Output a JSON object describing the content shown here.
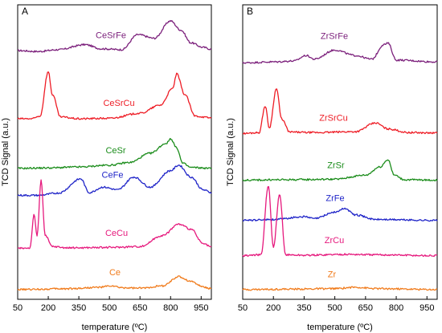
{
  "chart_data": [
    {
      "panel_label": "A",
      "type": "line",
      "xlabel": "temperature (ºC)",
      "ylabel": "TCD Signal (a.u.)",
      "xlim": [
        50,
        1000
      ],
      "xticks": [
        50,
        200,
        350,
        500,
        650,
        800,
        950
      ],
      "series": [
        {
          "name": "CeSrFe",
          "color": "#7b1f7b",
          "offset": 0.84,
          "points": [
            [
              50,
              0.03
            ],
            [
              150,
              0.01
            ],
            [
              250,
              0.05
            ],
            [
              380,
              0.16
            ],
            [
              460,
              0.07
            ],
            [
              560,
              0.05
            ],
            [
              640,
              0.38
            ],
            [
              720,
              0.3
            ],
            [
              800,
              0.68
            ],
            [
              850,
              0.48
            ],
            [
              900,
              0.2
            ],
            [
              960,
              0.1
            ],
            [
              1000,
              0.06
            ]
          ]
        },
        {
          "name": "CeSrCu",
          "color": "#ee1c25",
          "offset": 0.61,
          "points": [
            [
              50,
              0.02
            ],
            [
              120,
              0.02
            ],
            [
              160,
              0.08
            ],
            [
              200,
              1.05
            ],
            [
              220,
              0.55
            ],
            [
              260,
              0.06
            ],
            [
              350,
              0.02
            ],
            [
              500,
              0.03
            ],
            [
              650,
              0.14
            ],
            [
              750,
              0.32
            ],
            [
              810,
              0.68
            ],
            [
              830,
              1.0
            ],
            [
              870,
              0.55
            ],
            [
              920,
              0.08
            ],
            [
              1000,
              0.04
            ]
          ]
        },
        {
          "name": "CeSr",
          "color": "#1a8c1a",
          "offset": 0.44,
          "points": [
            [
              50,
              0.03
            ],
            [
              200,
              0.04
            ],
            [
              350,
              0.06
            ],
            [
              500,
              0.1
            ],
            [
              600,
              0.16
            ],
            [
              700,
              0.36
            ],
            [
              780,
              0.58
            ],
            [
              800,
              0.68
            ],
            [
              830,
              0.48
            ],
            [
              860,
              0.14
            ],
            [
              900,
              0.05
            ],
            [
              1000,
              0.03
            ]
          ]
        },
        {
          "name": "CeFe",
          "color": "#1f24c8",
          "offset": 0.35,
          "points": [
            [
              50,
              0.02
            ],
            [
              150,
              0.02
            ],
            [
              250,
              0.07
            ],
            [
              360,
              0.38
            ],
            [
              400,
              0.08
            ],
            [
              470,
              0.2
            ],
            [
              540,
              0.14
            ],
            [
              620,
              0.42
            ],
            [
              700,
              0.2
            ],
            [
              800,
              0.56
            ],
            [
              840,
              0.68
            ],
            [
              900,
              0.42
            ],
            [
              960,
              0.14
            ],
            [
              1000,
              0.08
            ]
          ]
        },
        {
          "name": "CeCu",
          "color": "#e6197d",
          "offset": 0.17,
          "points": [
            [
              50,
              0.02
            ],
            [
              110,
              0.03
            ],
            [
              130,
              0.75
            ],
            [
              145,
              0.3
            ],
            [
              165,
              1.5
            ],
            [
              185,
              0.3
            ],
            [
              220,
              0.06
            ],
            [
              300,
              0.03
            ],
            [
              500,
              0.04
            ],
            [
              650,
              0.06
            ],
            [
              760,
              0.3
            ],
            [
              840,
              0.55
            ],
            [
              900,
              0.44
            ],
            [
              960,
              0.12
            ],
            [
              1000,
              0.05
            ]
          ]
        },
        {
          "name": "Ce",
          "color": "#f07a1a",
          "offset": 0.03,
          "points": [
            [
              50,
              0.02
            ],
            [
              300,
              0.04
            ],
            [
              450,
              0.07
            ],
            [
              510,
              0.1
            ],
            [
              560,
              0.06
            ],
            [
              650,
              0.05
            ],
            [
              760,
              0.1
            ],
            [
              840,
              0.3
            ],
            [
              900,
              0.2
            ],
            [
              960,
              0.08
            ],
            [
              1000,
              0.04
            ]
          ]
        }
      ]
    },
    {
      "panel_label": "B",
      "type": "line",
      "xlabel": "temperature (ºC)",
      "ylabel": "TCD Signal (a.u.)",
      "xlim": [
        50,
        1000
      ],
      "xticks": [
        50,
        200,
        350,
        500,
        650,
        800,
        950
      ],
      "series": [
        {
          "name": "ZrSrFe",
          "color": "#7b1f7b",
          "offset": 0.8,
          "points": [
            [
              50,
              0.02
            ],
            [
              200,
              0.04
            ],
            [
              300,
              0.06
            ],
            [
              360,
              0.18
            ],
            [
              400,
              0.1
            ],
            [
              500,
              0.3
            ],
            [
              600,
              0.18
            ],
            [
              680,
              0.1
            ],
            [
              740,
              0.42
            ],
            [
              760,
              0.45
            ],
            [
              800,
              0.08
            ],
            [
              1000,
              0.04
            ]
          ]
        },
        {
          "name": "ZrSrCu",
          "color": "#ee1c25",
          "offset": 0.56,
          "points": [
            [
              50,
              0.02
            ],
            [
              130,
              0.04
            ],
            [
              160,
              0.62
            ],
            [
              180,
              0.14
            ],
            [
              215,
              1.0
            ],
            [
              240,
              0.34
            ],
            [
              280,
              0.05
            ],
            [
              400,
              0.04
            ],
            [
              600,
              0.06
            ],
            [
              700,
              0.25
            ],
            [
              760,
              0.12
            ],
            [
              860,
              0.04
            ],
            [
              1000,
              0.03
            ]
          ]
        },
        {
          "name": "ZrSr",
          "color": "#1a8c1a",
          "offset": 0.4,
          "points": [
            [
              50,
              0.03
            ],
            [
              300,
              0.04
            ],
            [
              500,
              0.05
            ],
            [
              650,
              0.14
            ],
            [
              720,
              0.32
            ],
            [
              760,
              0.48
            ],
            [
              790,
              0.14
            ],
            [
              840,
              0.04
            ],
            [
              1000,
              0.03
            ]
          ]
        },
        {
          "name": "ZrFe",
          "color": "#1f24c8",
          "offset": 0.265,
          "points": [
            [
              50,
              0.02
            ],
            [
              200,
              0.04
            ],
            [
              350,
              0.1
            ],
            [
              400,
              0.06
            ],
            [
              500,
              0.2
            ],
            [
              550,
              0.28
            ],
            [
              600,
              0.14
            ],
            [
              700,
              0.04
            ],
            [
              1000,
              0.02
            ]
          ]
        },
        {
          "name": "ZrCu",
          "color": "#e6197d",
          "offset": 0.145,
          "points": [
            [
              50,
              0.02
            ],
            [
              140,
              0.04
            ],
            [
              175,
              1.55
            ],
            [
              200,
              0.2
            ],
            [
              230,
              1.35
            ],
            [
              260,
              0.04
            ],
            [
              350,
              0.03
            ],
            [
              550,
              0.05
            ],
            [
              700,
              0.04
            ],
            [
              1000,
              0.02
            ]
          ]
        },
        {
          "name": "Zr",
          "color": "#f07a1a",
          "offset": 0.03,
          "points": [
            [
              50,
              0.02
            ],
            [
              300,
              0.03
            ],
            [
              500,
              0.04
            ],
            [
              600,
              0.07
            ],
            [
              700,
              0.04
            ],
            [
              1000,
              0.02
            ]
          ]
        }
      ]
    }
  ]
}
